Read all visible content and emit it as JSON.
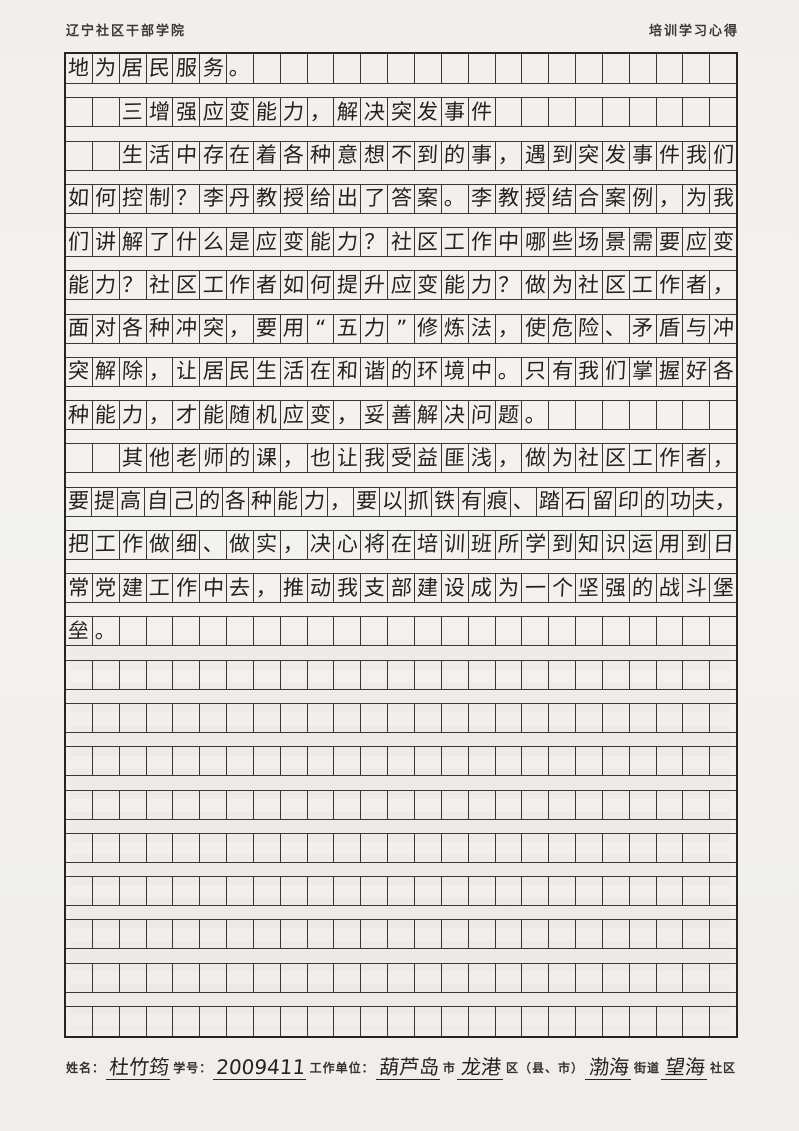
{
  "page": {
    "header_left": "辽宁社区干部学院",
    "header_right": "培训学习心得"
  },
  "colors": {
    "paper": "#f2f1ed",
    "grid_line": "#3a3832",
    "border": "#26251f",
    "ink": "#23221f",
    "print_text": "#33322e"
  },
  "grid": {
    "columns": 25,
    "rows": 23,
    "lines": [
      "地为居民服务。",
      "　　三增强应变能力，解决突发事件",
      "　　生活中存在着各种意想不到的事，遇到突发事件我们",
      "如何控制？李丹教授给出了答案。李教授结合案例，为我",
      "们讲解了什么是应变能力？社区工作中哪些场景需要应变",
      "能力？社区工作者如何提升应变能力？做为社区工作者，",
      "面对各种冲突，要用“五力”修炼法，使危险、矛盾与冲",
      "突解除，让居民生活在和谐的环境中。只有我们掌握好各",
      "种能力，才能随机应变，妥善解决问题。",
      "　　其他老师的课，也让我受益匪浅，做为社区工作者，",
      "要提高自己的各种能力，要以抓铁有痕、踏石留印的功夫，",
      "把工作做细、做实，决心将在培训班所学到知识运用到日",
      "常党建工作中去，推动我支部建设成为一个坚强的战斗堡",
      "垒。",
      "",
      "",
      "",
      "",
      "",
      "",
      "",
      "",
      ""
    ]
  },
  "footer": {
    "tokens": [
      {
        "type": "label",
        "text": "姓名："
      },
      {
        "type": "value",
        "text": "杜竹筠"
      },
      {
        "type": "label",
        "text": "学号："
      },
      {
        "type": "value",
        "text": "2009411"
      },
      {
        "type": "label",
        "text": "工作单位："
      },
      {
        "type": "value",
        "text": "葫芦岛"
      },
      {
        "type": "label",
        "text": "市"
      },
      {
        "type": "value",
        "text": "龙港"
      },
      {
        "type": "label",
        "text": "区（县、市）"
      },
      {
        "type": "value",
        "text": "渤海"
      },
      {
        "type": "label",
        "text": "街道"
      },
      {
        "type": "value",
        "text": "望海"
      },
      {
        "type": "label",
        "text": "社区"
      }
    ]
  }
}
